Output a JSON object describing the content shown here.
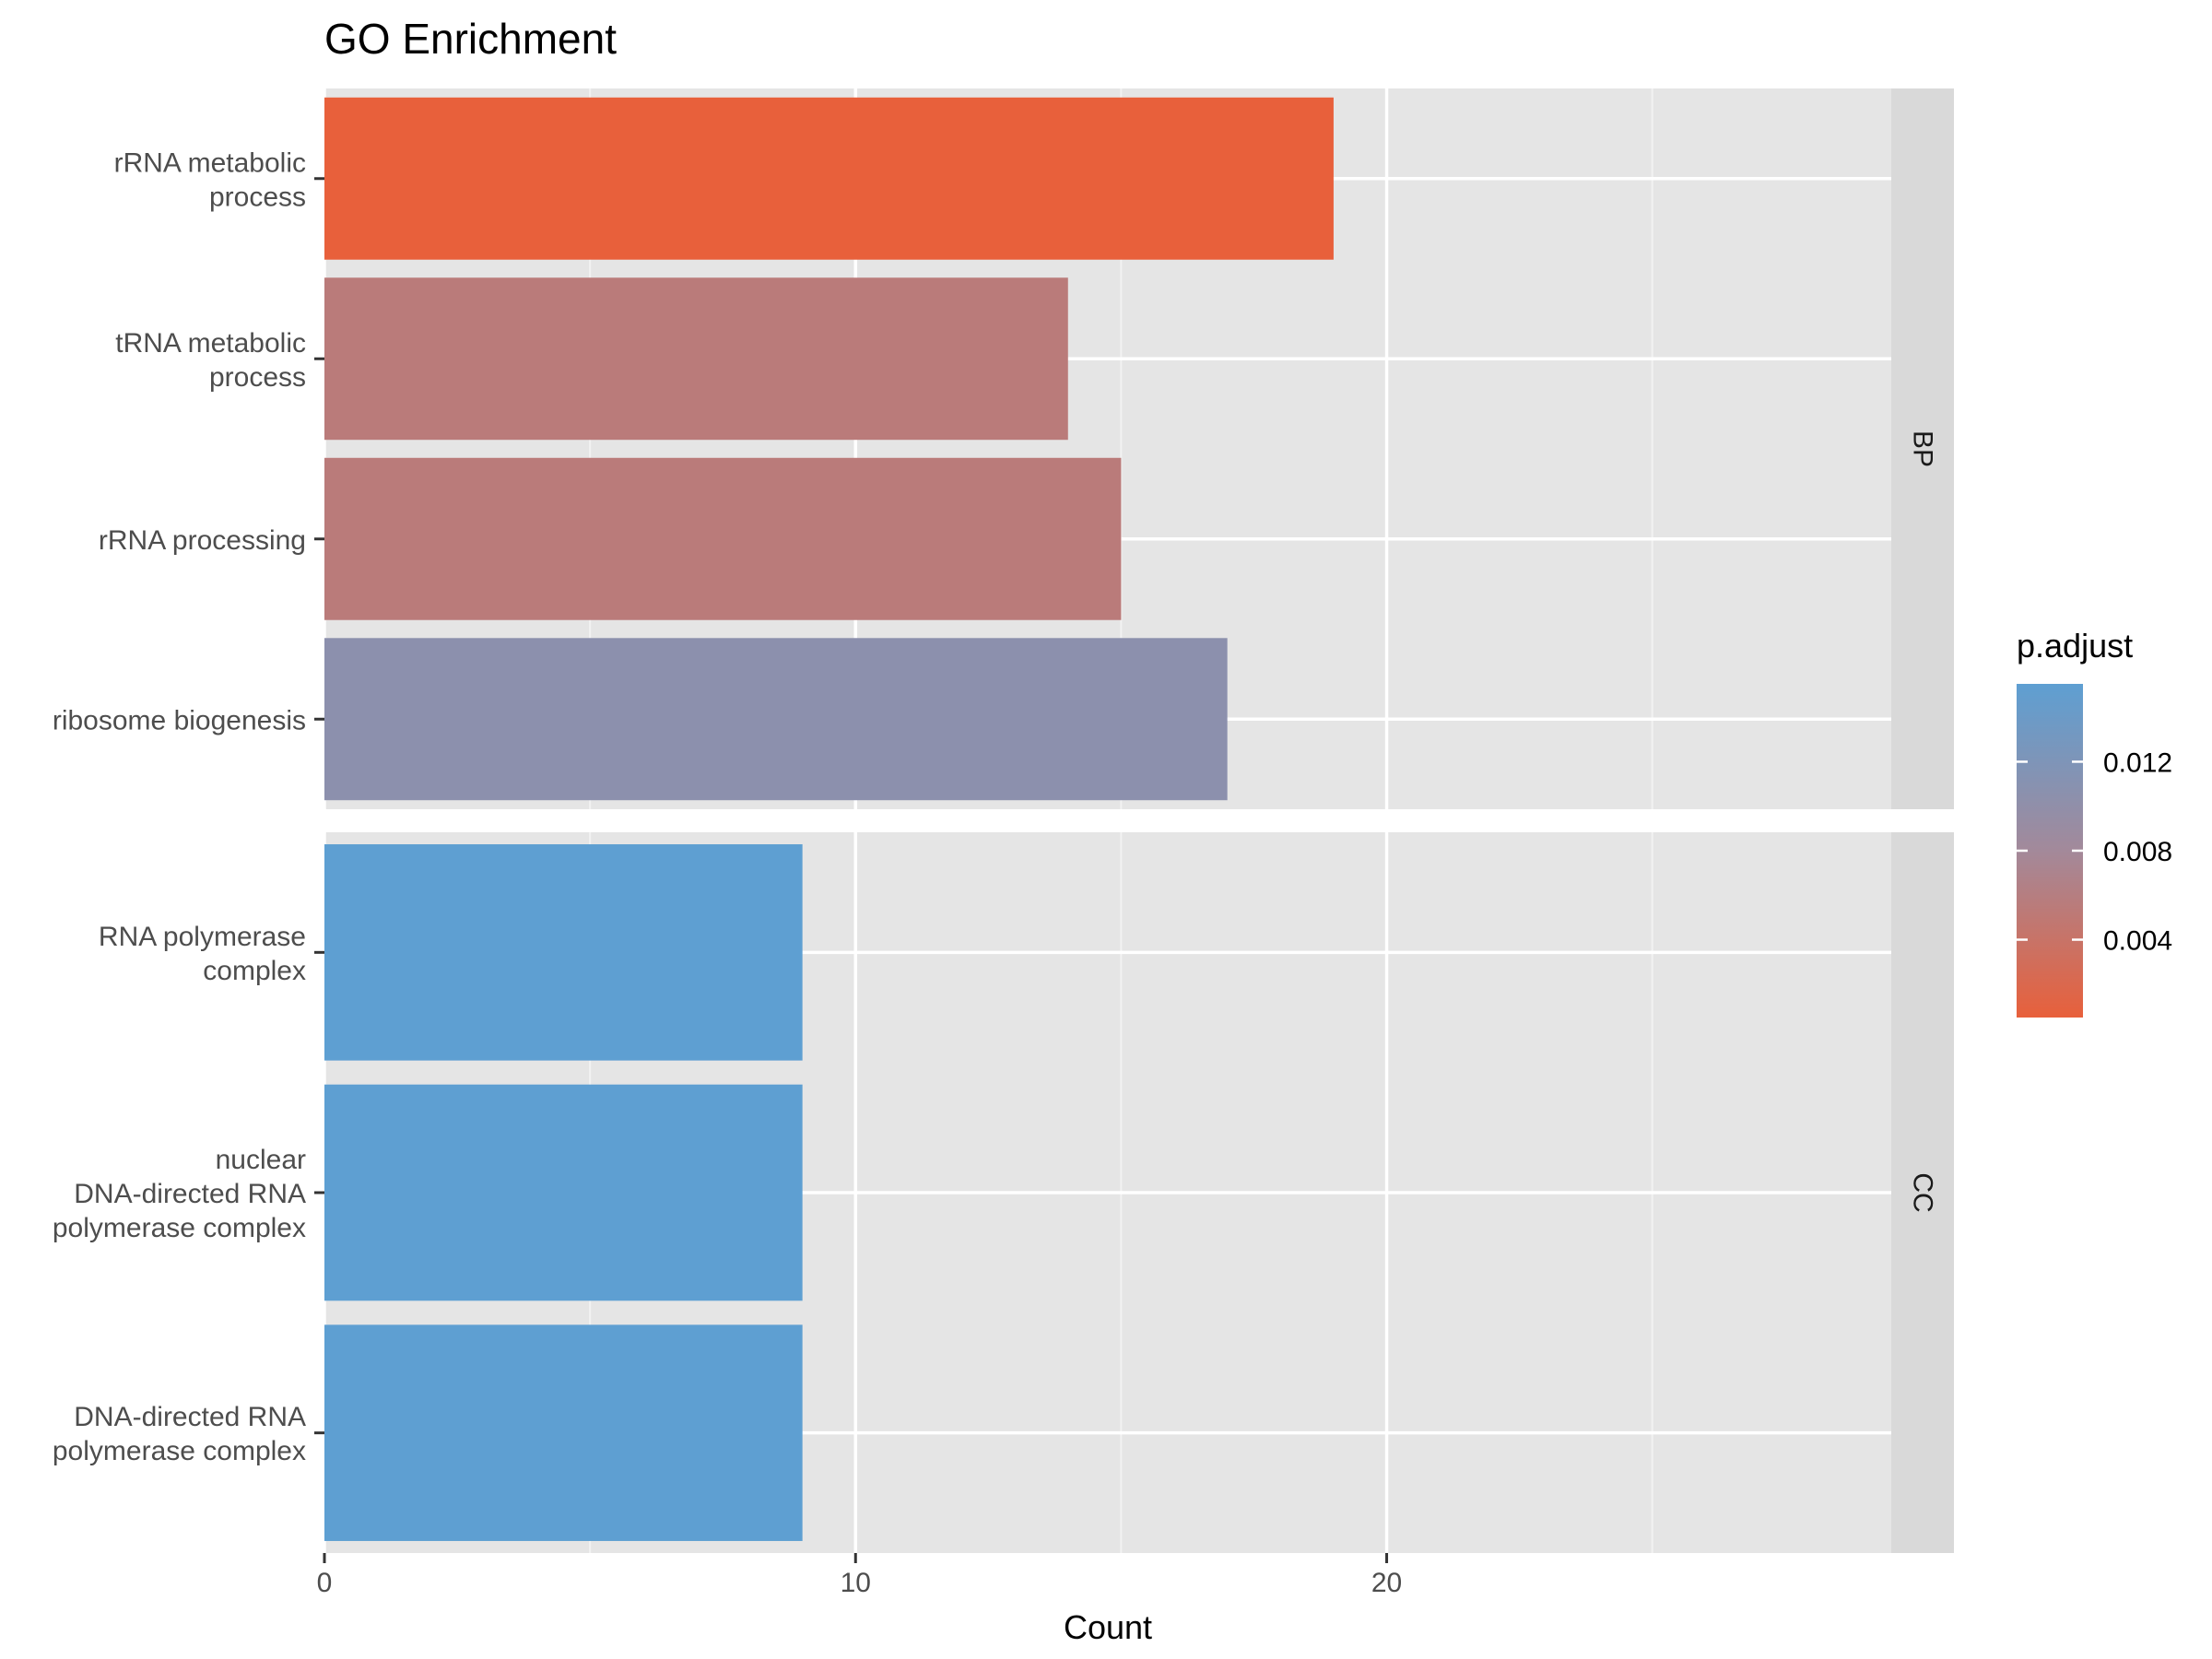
{
  "chart_data": {
    "type": "bar",
    "orientation": "horizontal",
    "title": "GO Enrichment",
    "xlabel": "Count",
    "ylabel": "",
    "xlim": [
      0,
      29.5
    ],
    "x_ticks": [
      0,
      10,
      20
    ],
    "grid": true,
    "facets": [
      {
        "name": "BP",
        "categories": [
          [
            "rRNA metabolic",
            "process"
          ],
          [
            "tRNA metabolic",
            "process"
          ],
          [
            "rRNA processing"
          ],
          [
            "ribosome biogenesis"
          ]
        ],
        "values": [
          19,
          14,
          15,
          17
        ],
        "p_adjust": [
          0.0005,
          0.0055,
          0.0055,
          0.0105
        ]
      },
      {
        "name": "CC",
        "categories": [
          [
            "RNA polymerase",
            "complex"
          ],
          [
            "nuclear",
            "DNA-directed RNA",
            "polymerase complex"
          ],
          [
            "DNA-directed RNA",
            "polymerase complex"
          ]
        ],
        "values": [
          9,
          9,
          9
        ],
        "p_adjust": [
          0.0155,
          0.0155,
          0.0155
        ]
      }
    ],
    "legend": {
      "title": "p.adjust",
      "position": "right",
      "range": [
        0.0005,
        0.0155
      ],
      "ticks": [
        0.004,
        0.008,
        0.012
      ],
      "tick_labels": [
        "0.004",
        "0.008",
        "0.012"
      ],
      "color_low": "#e8603b",
      "color_high": "#5e9fd2"
    }
  }
}
